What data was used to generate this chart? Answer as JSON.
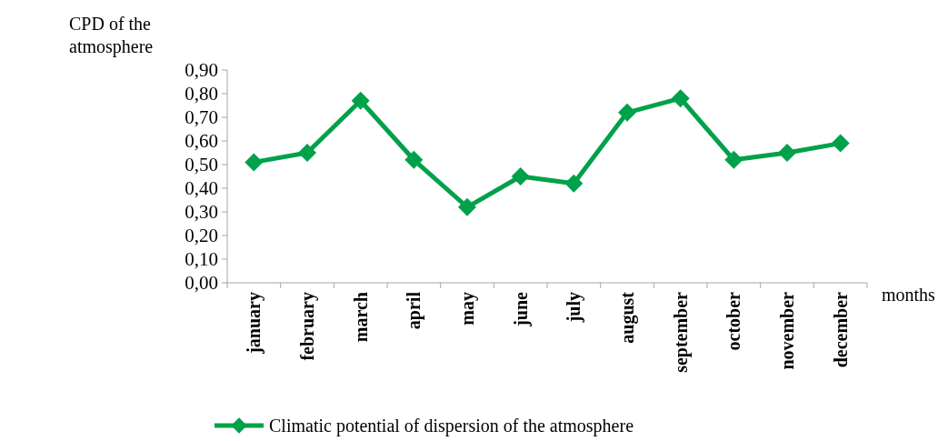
{
  "chart_data": {
    "type": "line",
    "ylabel": "CPD of the atmosphere",
    "xlabel": "months",
    "categories": [
      "january",
      "february",
      "march",
      "april",
      "may",
      "june",
      "july",
      "august",
      "september",
      "october",
      "november",
      "december"
    ],
    "series": [
      {
        "name": "Climatic potential of dispersion of the atmosphere",
        "color": "#00a14b",
        "values": [
          0.51,
          0.55,
          0.77,
          0.52,
          0.32,
          0.45,
          0.42,
          0.72,
          0.78,
          0.52,
          0.55,
          0.59
        ]
      }
    ],
    "ylim": [
      0,
      0.9
    ],
    "yticks": [
      {
        "value": 0,
        "label": "0,00"
      },
      {
        "value": 0.1,
        "label": "0,10"
      },
      {
        "value": 0.2,
        "label": "0,20"
      },
      {
        "value": 0.3,
        "label": "0,30"
      },
      {
        "value": 0.4,
        "label": "0,40"
      },
      {
        "value": 0.5,
        "label": "0,50"
      },
      {
        "value": 0.6,
        "label": "0,60"
      },
      {
        "value": 0.7,
        "label": "0,70"
      },
      {
        "value": 0.8,
        "label": "0,80"
      },
      {
        "value": 0.9,
        "label": "0,90"
      }
    ],
    "grid": false,
    "legend": "bottom",
    "marker": "diamond",
    "line_style": "solid"
  }
}
